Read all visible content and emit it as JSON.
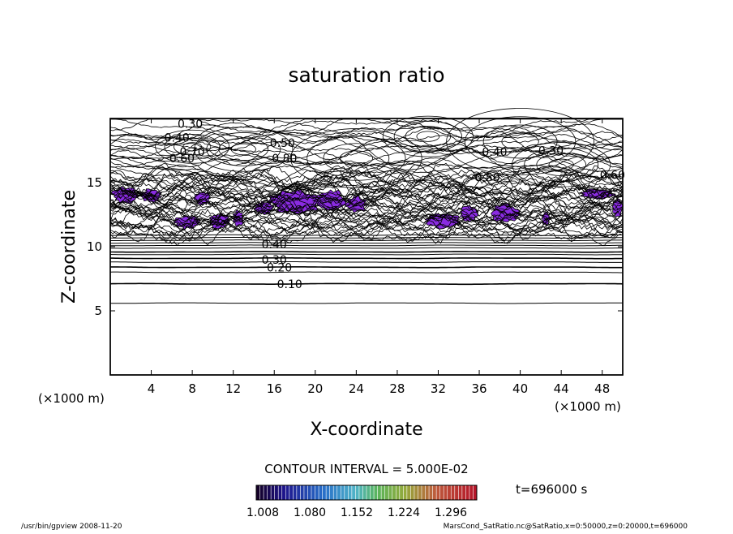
{
  "chart_data": {
    "type": "contour",
    "title": "saturation ratio",
    "xlabel": "X-coordinate",
    "ylabel": "Z-coordinate",
    "x_unit": "(×1000 m)",
    "y_unit": "(×1000 m)",
    "xlim": [
      0,
      50
    ],
    "ylim": [
      0,
      20
    ],
    "x_ticks": [
      4,
      8,
      12,
      16,
      20,
      24,
      28,
      32,
      36,
      40,
      44,
      48
    ],
    "y_ticks": [
      5,
      10,
      15
    ],
    "contour_interval_text": "CONTOUR INTERVAL = 5.000E-02",
    "time_text": "t=696000 s",
    "colorbar_labels": [
      "1.008",
      "1.080",
      "1.152",
      "1.224",
      "1.296"
    ],
    "colorbar_range": [
      1.008,
      1.296
    ],
    "shaded_color": "#8a2be2",
    "contour_labels": [
      "0.30",
      "0.40",
      "0.50",
      "0.60",
      "0.70",
      "0.80",
      "0.40",
      "0.30",
      "0.50",
      "0.60",
      "0.40",
      "0.30",
      "0.20",
      "0.10"
    ],
    "lower_levels": [
      {
        "z": 5.6,
        "label": null
      },
      {
        "z": 7.1,
        "label": "0.10"
      },
      {
        "z": 8.0,
        "label": null
      },
      {
        "z": 8.4,
        "label": "0.20"
      },
      {
        "z": 8.8,
        "label": null
      },
      {
        "z": 9.1,
        "label": "0.30"
      },
      {
        "z": 9.4,
        "label": null
      },
      {
        "z": 9.6,
        "label": "0.40"
      },
      {
        "z": 9.9,
        "label": null
      },
      {
        "z": 10.1,
        "label": null
      },
      {
        "z": 10.3,
        "label": null
      },
      {
        "z": 10.5,
        "label": null
      },
      {
        "z": 10.7,
        "label": null
      },
      {
        "z": 10.9,
        "label": null
      }
    ],
    "footer_left": "/usr/bin/gpview   2008-11-20",
    "footer_right": "MarsCond_SatRatio.nc@SatRatio,x=0:50000,z=0:20000,t=696000"
  }
}
